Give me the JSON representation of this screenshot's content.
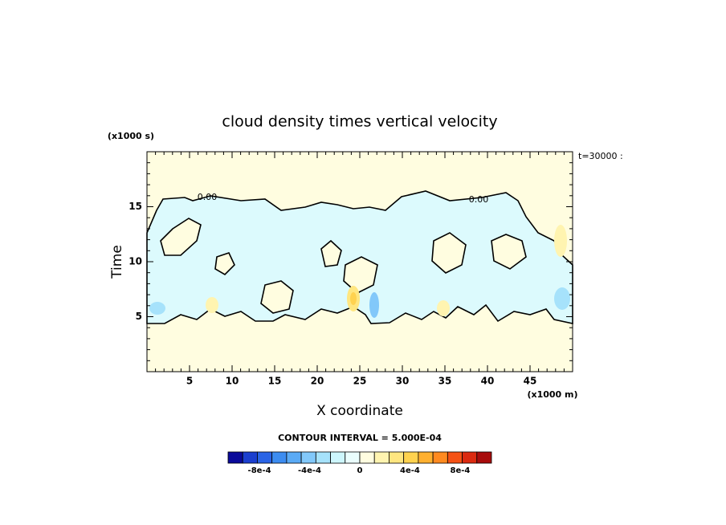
{
  "chart_data": {
    "type": "contour",
    "title": "cloud density times vertical velocity",
    "x_label": "X coordinate",
    "y_label": "Time",
    "x_unit": "(x1000 m)",
    "y_unit": "(x1000 s)",
    "time_label": "t=30000 :",
    "contour_interval": "CONTOUR INTERVAL = 5.000E-04",
    "contour_labels": [
      "0.00",
      "0.00"
    ],
    "xlim": [
      0,
      50
    ],
    "ylim": [
      0,
      20
    ],
    "xticks": [
      5,
      10,
      15,
      20,
      25,
      30,
      35,
      40,
      45
    ],
    "yticks": [
      5,
      10,
      15
    ],
    "colorbar": {
      "clim": [
        -0.00105,
        0.00105
      ],
      "colors": [
        "#0a0a9a",
        "#1b3fcf",
        "#2a64e6",
        "#3c8cf0",
        "#5aaaf5",
        "#82c8fa",
        "#a6e2fb",
        "#cdf6fd",
        "#eafdfd",
        "#fffde0",
        "#fff4b0",
        "#ffe680",
        "#ffd24f",
        "#ffb030",
        "#ff8a20",
        "#f55215",
        "#db2a10",
        "#a80c0c"
      ],
      "ticks": [
        {
          "value": -0.0008,
          "label": "-8e-4"
        },
        {
          "value": -0.0004,
          "label": "-4e-4"
        },
        0,
        {
          "value": 0.0004,
          "label": "4e-4"
        },
        {
          "value": 0.0008,
          "label": "8e-4"
        }
      ]
    }
  }
}
